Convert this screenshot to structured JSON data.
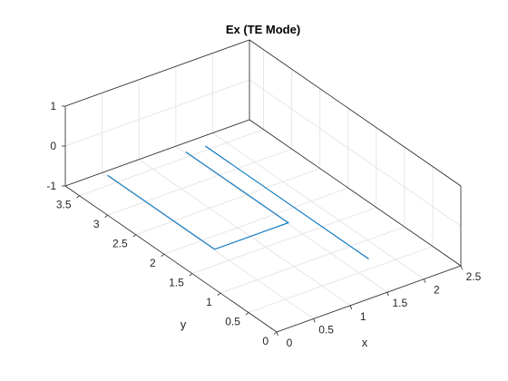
{
  "chart_data": {
    "type": "line",
    "view": "3d",
    "title": "Ex (TE Mode)",
    "xlabel": "x",
    "ylabel": "y",
    "zlabel": "",
    "xlim": [
      0,
      2.5
    ],
    "ylim": [
      0,
      3.75
    ],
    "zlim": [
      -1,
      1
    ],
    "x_ticks": [
      "0",
      "0.5",
      "1",
      "1.5",
      "2",
      "2.5"
    ],
    "y_ticks": [
      "0",
      "0.5",
      "1",
      "1.5",
      "2",
      "2.5",
      "3",
      "3.5"
    ],
    "z_ticks": [
      "-1",
      "0",
      "1"
    ],
    "grid": true,
    "box": true,
    "line_color": "#0072BD",
    "series": [
      {
        "points": [
          {
            "x": 0.0,
            "y": 3.0,
            "z": 0
          },
          {
            "x": 0.0,
            "y": 1.1,
            "z": 0
          },
          {
            "x": 1.0,
            "y": 1.1,
            "z": 0
          },
          {
            "x": 1.0,
            "y": 2.92,
            "z": 0
          }
        ]
      },
      {
        "points": [
          {
            "x": 1.25,
            "y": 0.0,
            "z": 0
          },
          {
            "x": 1.25,
            "y": 2.9,
            "z": 0
          }
        ]
      }
    ]
  }
}
